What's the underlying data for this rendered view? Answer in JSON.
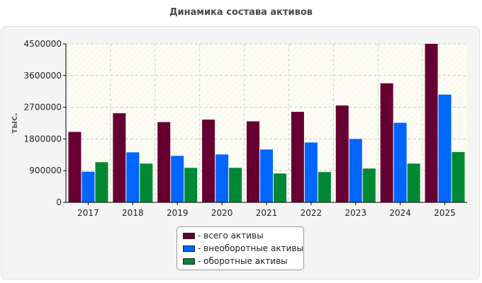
{
  "chart_data": {
    "type": "bar",
    "title": "Динамика состава активов",
    "ylabel": "тыс.",
    "xlabel": "",
    "categories": [
      "2017",
      "2018",
      "2019",
      "2020",
      "2021",
      "2022",
      "2023",
      "2024",
      "2025"
    ],
    "ylim": [
      0,
      4500000
    ],
    "yticks": [
      0,
      900000,
      1800000,
      2700000,
      3600000,
      4500000
    ],
    "ytick_labels": [
      "0",
      "900000",
      "1800000",
      "2700000",
      "3600000",
      "4500000"
    ],
    "grid": true,
    "legend_position": "bottom",
    "series": [
      {
        "name": "- всего активы",
        "color": "#660033",
        "values": [
          2000000,
          2530000,
          2280000,
          2350000,
          2300000,
          2570000,
          2750000,
          3380000,
          4500000
        ]
      },
      {
        "name": "- внеоборотные активы",
        "color": "#0066ff",
        "values": [
          870000,
          1420000,
          1320000,
          1360000,
          1500000,
          1700000,
          1800000,
          2260000,
          3060000
        ]
      },
      {
        "name": "- оборотные активы",
        "color": "#008833",
        "values": [
          1140000,
          1100000,
          980000,
          980000,
          820000,
          860000,
          960000,
          1100000,
          1430000
        ]
      }
    ]
  }
}
